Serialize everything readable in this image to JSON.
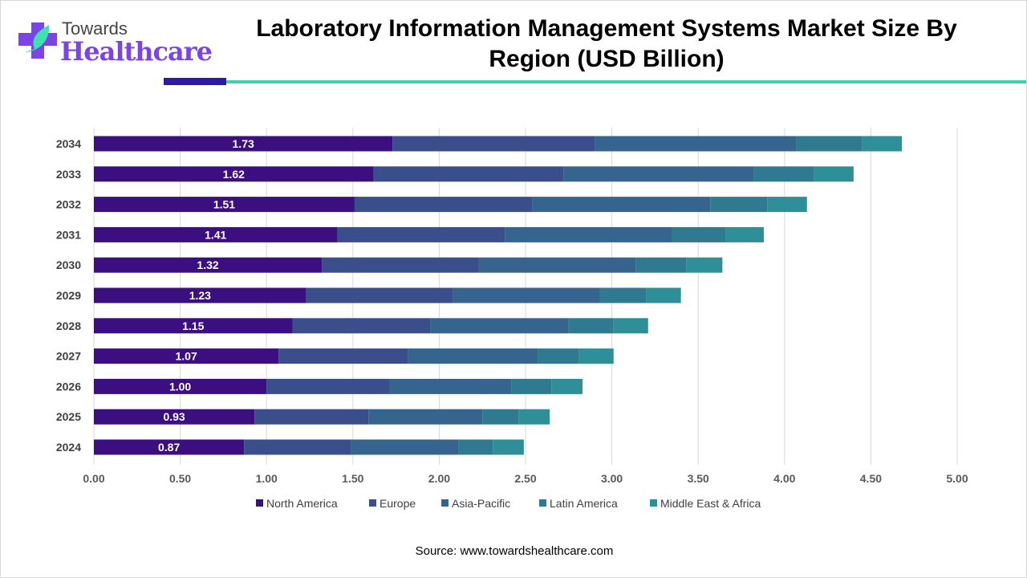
{
  "logo": {
    "line1": "Towards",
    "line2": "Healthcare"
  },
  "title": "Laboratory Information Management Systems Market Size By Region (USD Billion)",
  "source": "Source: www.towardshealthcare.com",
  "chart_data": {
    "type": "bar",
    "orientation": "horizontal",
    "stacked": true,
    "title": "Laboratory Information Management Systems Market Size By Region (USD Billion)",
    "categories": [
      "2034",
      "2033",
      "2032",
      "2031",
      "2030",
      "2029",
      "2028",
      "2027",
      "2026",
      "2025",
      "2024"
    ],
    "xlim": [
      0,
      5
    ],
    "xticks": [
      "0.00",
      "0.50",
      "1.00",
      "1.50",
      "2.00",
      "2.50",
      "3.00",
      "3.50",
      "4.00",
      "4.50",
      "5.00"
    ],
    "grid": true,
    "legend": "bottom",
    "series": [
      {
        "name": "North America",
        "color": "#3b0f80",
        "values": [
          1.73,
          1.62,
          1.51,
          1.41,
          1.32,
          1.23,
          1.15,
          1.07,
          1.0,
          0.93,
          0.87
        ],
        "labels": [
          "1.73",
          "1.62",
          "1.51",
          "1.41",
          "1.32",
          "1.23",
          "1.15",
          "1.07",
          "1.00",
          "0.93",
          "0.87"
        ]
      },
      {
        "name": "Europe",
        "color": "#3a4e8c",
        "values": [
          1.17,
          1.1,
          1.03,
          0.97,
          0.91,
          0.85,
          0.8,
          0.75,
          0.71,
          0.66,
          0.62
        ]
      },
      {
        "name": "Asia-Pacific",
        "color": "#35648e",
        "values": [
          1.17,
          1.1,
          1.03,
          0.97,
          0.91,
          0.85,
          0.8,
          0.75,
          0.71,
          0.66,
          0.62
        ]
      },
      {
        "name": "Latin America",
        "color": "#2f7a90",
        "values": [
          0.38,
          0.35,
          0.33,
          0.31,
          0.29,
          0.27,
          0.26,
          0.24,
          0.23,
          0.21,
          0.2
        ]
      },
      {
        "name": "Middle East & Africa",
        "color": "#2e8f99",
        "values": [
          0.23,
          0.23,
          0.23,
          0.22,
          0.21,
          0.2,
          0.2,
          0.2,
          0.18,
          0.18,
          0.18
        ]
      }
    ]
  }
}
